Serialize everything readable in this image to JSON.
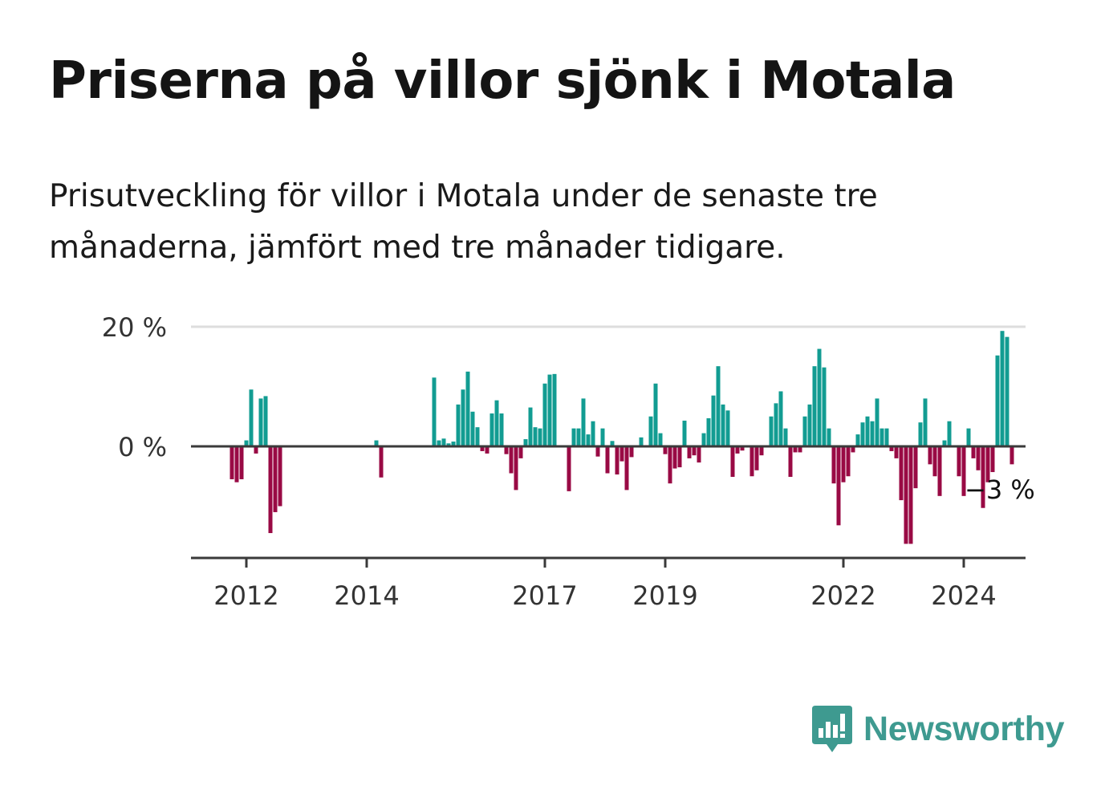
{
  "title": "Priserna på villor sjönk i Motala",
  "subtitle": "Prisutveckling för villor i Motala under de senaste tre månaderna, jämfört med tre månader tidigare.",
  "brand": {
    "name": "Newsworthy",
    "logo_icon": "bar-chart-speech-bubble-icon"
  },
  "colors": {
    "positive": "#129c92",
    "negative": "#990a44",
    "axis": "#3a3a3a",
    "grid": "#dddddd",
    "brand": "#3e9a90"
  },
  "chart_data": {
    "type": "bar",
    "ylim": [
      -18,
      20
    ],
    "y_ticks": [
      {
        "value": 0,
        "label": "0 %"
      },
      {
        "value": 20,
        "label": "20 %"
      }
    ],
    "x_ticks": [
      {
        "label": "2012",
        "index": 3
      },
      {
        "label": "2014",
        "index": 28
      },
      {
        "label": "2017",
        "index": 65
      },
      {
        "label": "2019",
        "index": 90
      },
      {
        "label": "2022",
        "index": 127
      },
      {
        "label": "2024",
        "index": 152
      }
    ],
    "annotation": {
      "text": "−3 %",
      "index": 159
    },
    "grid": true,
    "legend": "none",
    "values": [
      -5.5,
      -6,
      -5.5,
      1,
      9.5,
      -1.2,
      8,
      8.4,
      -14.5,
      -11,
      -10,
      0,
      0,
      0,
      0,
      0,
      0,
      0,
      0,
      0,
      0,
      0,
      0,
      0,
      0,
      0,
      0,
      0,
      0,
      0,
      1,
      -5.2,
      0,
      0,
      0,
      0,
      0,
      0,
      0,
      0,
      0,
      0,
      11.5,
      1,
      1.3,
      0.5,
      0.8,
      7,
      9.5,
      12.5,
      5.8,
      3.2,
      -0.8,
      -1.2,
      5.5,
      7.7,
      5.5,
      -1.3,
      -4.5,
      -7.3,
      -2,
      1.2,
      6.5,
      3.2,
      3,
      10.5,
      12,
      12.1,
      0,
      0,
      -7.5,
      3,
      3,
      8,
      2,
      4.2,
      -1.7,
      3,
      -4.5,
      0.9,
      -4.7,
      -2.5,
      -7.3,
      -1.8,
      0,
      1.5,
      0,
      5,
      10.5,
      2.2,
      -1.3,
      -6.2,
      -3.7,
      -3.5,
      4.3,
      -2,
      -1.5,
      -2.7,
      2.2,
      4.7,
      8.5,
      13.4,
      7,
      6,
      -5.1,
      -1.2,
      -0.7,
      0,
      -5,
      -4,
      -1.5,
      0,
      5,
      7.2,
      9.2,
      3,
      -5.1,
      -1,
      -1,
      5,
      7,
      13.4,
      16.3,
      13.2,
      3,
      -6.2,
      -13.2,
      -6,
      -5,
      -1,
      2,
      4,
      5,
      4.2,
      8,
      3,
      3,
      -0.8,
      -2,
      -9,
      -16.3,
      -16.3,
      -7,
      4,
      8,
      -3,
      -5,
      -8.3,
      1,
      4.2,
      0,
      -5,
      -8.3,
      3,
      -2,
      -4,
      -10.3,
      -6,
      -4.3,
      15.2,
      19.3,
      18.3,
      -3
    ]
  }
}
